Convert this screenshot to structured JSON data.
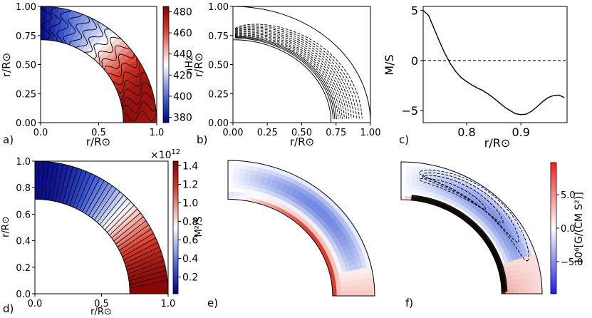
{
  "panels": [
    {
      "id": "a",
      "panel_label": "a)",
      "type": "contour",
      "xlabel": "r/R⊙",
      "ylabel": "r/R⊙",
      "x_ticks": [
        "0.0",
        "0.5",
        "1.0"
      ],
      "y_ticks": [
        "0.00",
        "0.25",
        "0.50",
        "0.75",
        "1.00"
      ],
      "colorbar": {
        "label": "nHz",
        "ticks": [
          "380",
          "400",
          "420",
          "440",
          "460",
          "480"
        ],
        "range": [
          375,
          485
        ],
        "colormap": "blue-white-red"
      }
    },
    {
      "id": "b",
      "panel_label": "b)",
      "type": "contour",
      "xlabel": "r/R⊙",
      "ylabel": "r/R⊙",
      "x_ticks": [
        "0.00",
        "0.25",
        "0.50",
        "0.75",
        "1.00"
      ],
      "y_ticks": [
        "0.00",
        "0.25",
        "0.50",
        "0.75",
        "1.00"
      ]
    },
    {
      "id": "c",
      "panel_label": "c)",
      "type": "line",
      "xlabel": "r/R⊙",
      "ylabel": "M/S",
      "x_ticks": [
        "0.8",
        "0.9"
      ],
      "y_ticks": [
        "5",
        "0",
        "−5"
      ],
      "xlim": [
        0.72,
        0.985
      ],
      "ylim": [
        -6.2,
        5.4
      ],
      "zero_line": "dashed"
    },
    {
      "id": "d",
      "panel_label": "d)",
      "type": "contour",
      "xlabel": "r/R⊙",
      "ylabel": "r/R⊙",
      "x_ticks": [
        "0.0",
        "0.5",
        "1.0"
      ],
      "y_ticks": [
        "0.0",
        "0.2",
        "0.4",
        "0.6",
        "0.8",
        "1.0"
      ],
      "colorbar": {
        "label": "M²/S",
        "multiplier": "×10",
        "multiplier_exp": "12",
        "ticks": [
          "0.2",
          "0.4",
          "0.6",
          "0.8",
          "1.0",
          "1.2",
          "1.4"
        ],
        "range": [
          0.02,
          1.45
        ],
        "colormap": "blue-white-red"
      }
    },
    {
      "id": "e",
      "panel_label": "e)",
      "type": "heatmap"
    },
    {
      "id": "f",
      "panel_label": "f)",
      "type": "contour",
      "colorbar": {
        "label": "10⁶[G/(CM S²)]",
        "ticks": [
          "5.0",
          "0.0",
          "−5.0"
        ],
        "range": [
          -9.8,
          9.8
        ],
        "colormap": "blue-white-red"
      }
    }
  ],
  "chart_data": [
    {
      "type": "line",
      "panel": "c",
      "xlabel": "r/R⊙",
      "ylabel": "M/S",
      "xlim": [
        0.72,
        0.985
      ],
      "ylim": [
        -6.2,
        5.4
      ],
      "x": [
        0.72,
        0.73,
        0.74,
        0.75,
        0.76,
        0.77,
        0.78,
        0.79,
        0.8,
        0.81,
        0.82,
        0.83,
        0.84,
        0.85,
        0.86,
        0.87,
        0.88,
        0.89,
        0.9,
        0.91,
        0.92,
        0.93,
        0.94,
        0.95,
        0.96,
        0.97,
        0.98
      ],
      "values": [
        5.0,
        4.5,
        3.2,
        1.9,
        0.7,
        -0.3,
        -1.1,
        -1.7,
        -2.1,
        -2.45,
        -2.75,
        -3.0,
        -3.35,
        -3.75,
        -4.2,
        -4.65,
        -5.0,
        -5.3,
        -5.4,
        -5.35,
        -5.05,
        -4.6,
        -4.1,
        -3.7,
        -3.5,
        -3.45,
        -3.7
      ]
    }
  ]
}
